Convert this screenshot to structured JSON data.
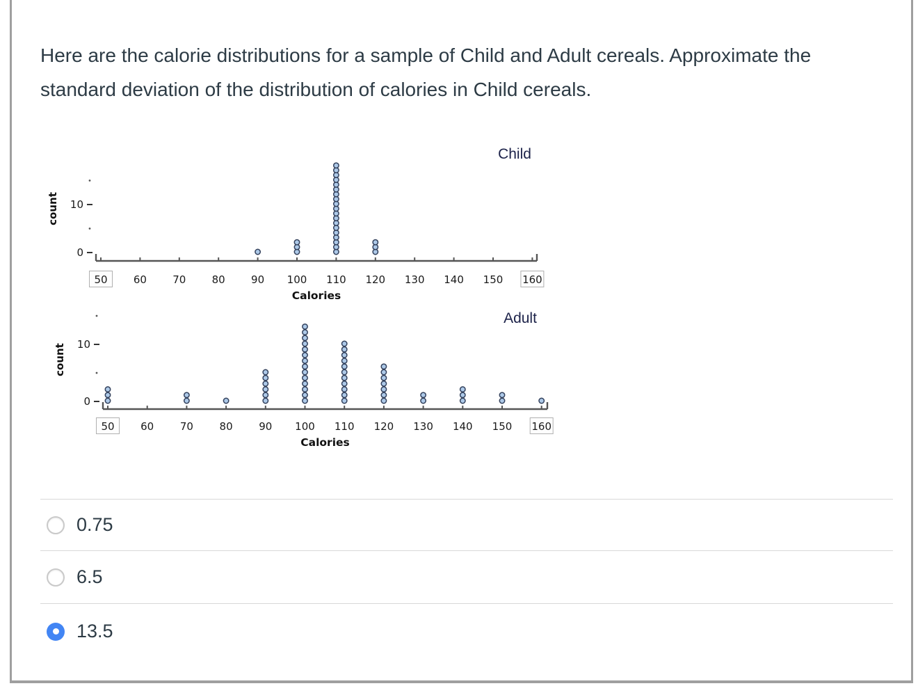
{
  "question": {
    "text": "Here are the calorie distributions for a sample of Child and Adult cereals. Approximate the standard deviation of the distribution of calories in Child cereals."
  },
  "chart_data": [
    {
      "type": "dotplot",
      "title": "Child",
      "xlabel": "Calories",
      "ylabel": "count",
      "x_ticks": [
        50,
        60,
        70,
        80,
        90,
        100,
        110,
        120,
        130,
        140,
        150,
        160
      ],
      "boxed_ticks": [
        50,
        160
      ],
      "y_ticks": [
        0,
        10
      ],
      "y_minor_ticks": [
        5,
        15
      ],
      "xlim": [
        50,
        160
      ],
      "ylim": [
        0,
        19
      ],
      "points": [
        {
          "x": 90,
          "count": 1
        },
        {
          "x": 100,
          "count": 3
        },
        {
          "x": 110,
          "count": 19
        },
        {
          "x": 120,
          "count": 3
        }
      ]
    },
    {
      "type": "dotplot",
      "title": "Adult",
      "xlabel": "Calories",
      "ylabel": "count",
      "x_ticks": [
        50,
        60,
        70,
        80,
        90,
        100,
        110,
        120,
        130,
        140,
        150,
        160
      ],
      "boxed_ticks": [
        50,
        160
      ],
      "y_ticks": [
        0,
        10
      ],
      "y_minor_ticks": [
        5,
        15
      ],
      "xlim": [
        50,
        160
      ],
      "ylim": [
        0,
        14
      ],
      "points": [
        {
          "x": 50,
          "count": 3
        },
        {
          "x": 70,
          "count": 2
        },
        {
          "x": 80,
          "count": 1
        },
        {
          "x": 90,
          "count": 6
        },
        {
          "x": 100,
          "count": 14
        },
        {
          "x": 110,
          "count": 11
        },
        {
          "x": 120,
          "count": 7
        },
        {
          "x": 130,
          "count": 2
        },
        {
          "x": 140,
          "count": 3
        },
        {
          "x": 150,
          "count": 2
        },
        {
          "x": 160,
          "count": 1
        }
      ]
    }
  ],
  "options": [
    {
      "label": "0.75",
      "selected": false
    },
    {
      "label": "6.5",
      "selected": false
    },
    {
      "label": "13.5",
      "selected": true
    }
  ],
  "colors": {
    "accent": "#4285f4",
    "text": "#2d3b45",
    "divider": "#d8d8d8",
    "panel_border": "#9f9f9f",
    "dot_fill": "#adc9e8",
    "dot_stroke": "#33415c",
    "axis": "#555555",
    "plot_title": "#1c2249"
  }
}
